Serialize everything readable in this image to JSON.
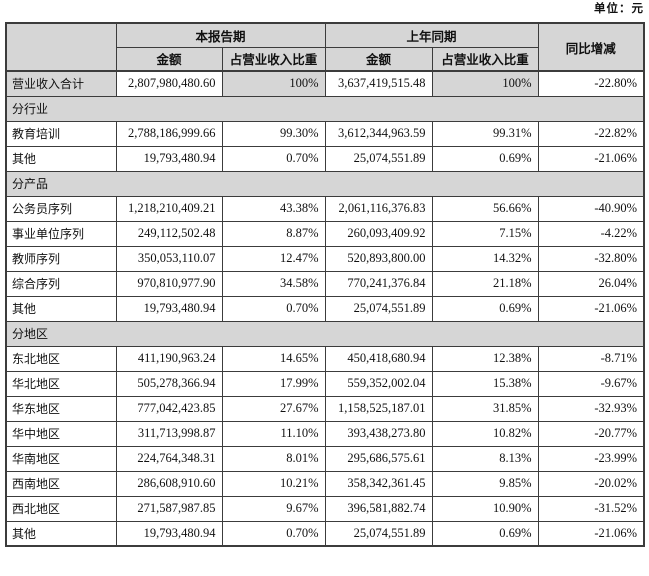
{
  "unit_label": "单位：元",
  "colors": {
    "shaded_cell": "#d6d6d6",
    "border": "#3c3c3c",
    "text": "#111111",
    "background": "#ffffff"
  },
  "table": {
    "header": {
      "current_period": "本报告期",
      "prior_period": "上年同期",
      "yoy_change": "同比增减",
      "amount": "金额",
      "pct_of_revenue": "占营业收入比重"
    },
    "rows": [
      {
        "kind": "total",
        "label": "营业收入合计",
        "cur_amount": "2,807,980,480.60",
        "cur_pct": "100%",
        "prev_amount": "3,637,419,515.48",
        "prev_pct": "100%",
        "yoy": "-22.80%"
      },
      {
        "kind": "section",
        "label": "分行业"
      },
      {
        "kind": "data",
        "label": "教育培训",
        "cur_amount": "2,788,186,999.66",
        "cur_pct": "99.30%",
        "prev_amount": "3,612,344,963.59",
        "prev_pct": "99.31%",
        "yoy": "-22.82%"
      },
      {
        "kind": "data",
        "label": "其他",
        "cur_amount": "19,793,480.94",
        "cur_pct": "0.70%",
        "prev_amount": "25,074,551.89",
        "prev_pct": "0.69%",
        "yoy": "-21.06%"
      },
      {
        "kind": "section",
        "label": "分产品"
      },
      {
        "kind": "data",
        "label": "公务员序列",
        "cur_amount": "1,218,210,409.21",
        "cur_pct": "43.38%",
        "prev_amount": "2,061,116,376.83",
        "prev_pct": "56.66%",
        "yoy": "-40.90%"
      },
      {
        "kind": "data",
        "label": "事业单位序列",
        "cur_amount": "249,112,502.48",
        "cur_pct": "8.87%",
        "prev_amount": "260,093,409.92",
        "prev_pct": "7.15%",
        "yoy": "-4.22%"
      },
      {
        "kind": "data",
        "label": "教师序列",
        "cur_amount": "350,053,110.07",
        "cur_pct": "12.47%",
        "prev_amount": "520,893,800.00",
        "prev_pct": "14.32%",
        "yoy": "-32.80%"
      },
      {
        "kind": "data",
        "label": "综合序列",
        "cur_amount": "970,810,977.90",
        "cur_pct": "34.58%",
        "prev_amount": "770,241,376.84",
        "prev_pct": "21.18%",
        "yoy": "26.04%"
      },
      {
        "kind": "data",
        "label": "其他",
        "cur_amount": "19,793,480.94",
        "cur_pct": "0.70%",
        "prev_amount": "25,074,551.89",
        "prev_pct": "0.69%",
        "yoy": "-21.06%"
      },
      {
        "kind": "section",
        "label": "分地区"
      },
      {
        "kind": "data",
        "label": "东北地区",
        "cur_amount": "411,190,963.24",
        "cur_pct": "14.65%",
        "prev_amount": "450,418,680.94",
        "prev_pct": "12.38%",
        "yoy": "-8.71%"
      },
      {
        "kind": "data",
        "label": "华北地区",
        "cur_amount": "505,278,366.94",
        "cur_pct": "17.99%",
        "prev_amount": "559,352,002.04",
        "prev_pct": "15.38%",
        "yoy": "-9.67%"
      },
      {
        "kind": "data",
        "label": "华东地区",
        "cur_amount": "777,042,423.85",
        "cur_pct": "27.67%",
        "prev_amount": "1,158,525,187.01",
        "prev_pct": "31.85%",
        "yoy": "-32.93%"
      },
      {
        "kind": "data",
        "label": "华中地区",
        "cur_amount": "311,713,998.87",
        "cur_pct": "11.10%",
        "prev_amount": "393,438,273.80",
        "prev_pct": "10.82%",
        "yoy": "-20.77%"
      },
      {
        "kind": "data",
        "label": "华南地区",
        "cur_amount": "224,764,348.31",
        "cur_pct": "8.01%",
        "prev_amount": "295,686,575.61",
        "prev_pct": "8.13%",
        "yoy": "-23.99%"
      },
      {
        "kind": "data",
        "label": "西南地区",
        "cur_amount": "286,608,910.60",
        "cur_pct": "10.21%",
        "prev_amount": "358,342,361.45",
        "prev_pct": "9.85%",
        "yoy": "-20.02%"
      },
      {
        "kind": "data",
        "label": "西北地区",
        "cur_amount": "271,587,987.85",
        "cur_pct": "9.67%",
        "prev_amount": "396,581,882.74",
        "prev_pct": "10.90%",
        "yoy": "-31.52%"
      },
      {
        "kind": "data",
        "label": "其他",
        "cur_amount": "19,793,480.94",
        "cur_pct": "0.70%",
        "prev_amount": "25,074,551.89",
        "prev_pct": "0.69%",
        "yoy": "-21.06%"
      }
    ]
  }
}
